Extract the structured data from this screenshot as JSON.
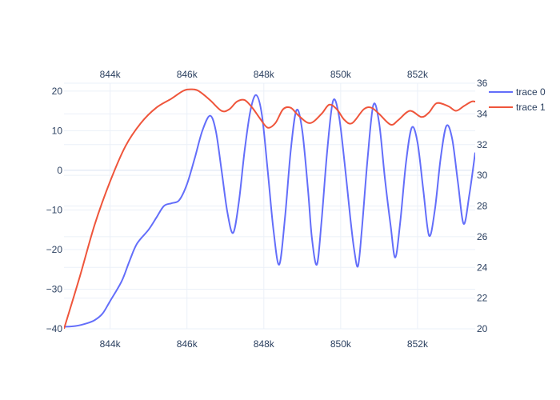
{
  "chart_data": {
    "type": "line",
    "x_axis": {
      "ticks": [
        844000,
        846000,
        848000,
        850000,
        852000
      ],
      "tick_labels": [
        "844k",
        "846k",
        "848k",
        "850k",
        "852k"
      ],
      "range": [
        842800,
        853500
      ]
    },
    "y_left": {
      "ticks": [
        -40,
        -30,
        -20,
        -10,
        0,
        10,
        20
      ],
      "tick_labels": [
        "−40",
        "−30",
        "−20",
        "−10",
        "0",
        "10",
        "20"
      ],
      "range": [
        -40,
        22
      ]
    },
    "y_right": {
      "ticks": [
        20,
        22,
        24,
        26,
        28,
        30,
        32,
        34,
        36
      ],
      "tick_labels": [
        "20",
        "22",
        "24",
        "26",
        "28",
        "30",
        "32",
        "34",
        "36"
      ],
      "range": [
        20,
        36
      ]
    },
    "grid": true,
    "legend_position": "top-right",
    "series": [
      {
        "name": "trace 0",
        "axis": "left",
        "color": "#636efa",
        "points": [
          [
            842800,
            -39.5
          ],
          [
            843100,
            -39.3
          ],
          [
            843400,
            -38.6
          ],
          [
            843600,
            -37.8
          ],
          [
            843800,
            -36.2
          ],
          [
            844000,
            -33.0
          ],
          [
            844300,
            -28.0
          ],
          [
            844500,
            -23.0
          ],
          [
            844700,
            -18.5
          ],
          [
            845000,
            -15.0
          ],
          [
            845200,
            -12.0
          ],
          [
            845400,
            -9.0
          ],
          [
            845600,
            -8.3
          ],
          [
            845800,
            -7.5
          ],
          [
            846000,
            -3.5
          ],
          [
            846200,
            3.0
          ],
          [
            846400,
            10.0
          ],
          [
            846600,
            13.8
          ],
          [
            846750,
            10.0
          ],
          [
            846900,
            0.0
          ],
          [
            847050,
            -10.5
          ],
          [
            847200,
            -15.8
          ],
          [
            847350,
            -8.0
          ],
          [
            847500,
            5.0
          ],
          [
            847650,
            15.0
          ],
          [
            847800,
            19.0
          ],
          [
            847950,
            14.0
          ],
          [
            848100,
            0.0
          ],
          [
            848250,
            -15.0
          ],
          [
            848400,
            -23.8
          ],
          [
            848550,
            -12.0
          ],
          [
            848700,
            5.0
          ],
          [
            848850,
            15.2
          ],
          [
            849000,
            10.0
          ],
          [
            849150,
            -5.0
          ],
          [
            849250,
            -17.0
          ],
          [
            849380,
            -23.8
          ],
          [
            849500,
            -13.0
          ],
          [
            849650,
            5.0
          ],
          [
            849800,
            17.5
          ],
          [
            849950,
            14.0
          ],
          [
            850100,
            2.0
          ],
          [
            850250,
            -12.0
          ],
          [
            850350,
            -20.0
          ],
          [
            850450,
            -24.2
          ],
          [
            850550,
            -15.0
          ],
          [
            850700,
            3.0
          ],
          [
            850850,
            16.5
          ],
          [
            851000,
            12.0
          ],
          [
            851150,
            -2.0
          ],
          [
            851300,
            -14.0
          ],
          [
            851420,
            -22.0
          ],
          [
            851550,
            -13.0
          ],
          [
            851700,
            2.0
          ],
          [
            851850,
            10.8
          ],
          [
            852000,
            7.0
          ],
          [
            852150,
            -5.0
          ],
          [
            852300,
            -16.5
          ],
          [
            852450,
            -10.0
          ],
          [
            852600,
            3.0
          ],
          [
            852750,
            11.2
          ],
          [
            852900,
            8.0
          ],
          [
            853050,
            -3.0
          ],
          [
            853200,
            -13.5
          ],
          [
            853350,
            -6.0
          ],
          [
            853500,
            4.5
          ]
        ]
      },
      {
        "name": "trace 1",
        "axis": "right",
        "color": "#ef553b",
        "points": [
          [
            842800,
            20.0
          ],
          [
            843200,
            23.3
          ],
          [
            843600,
            26.8
          ],
          [
            844000,
            29.6
          ],
          [
            844400,
            31.9
          ],
          [
            844800,
            33.4
          ],
          [
            845200,
            34.4
          ],
          [
            845600,
            35.0
          ],
          [
            845900,
            35.5
          ],
          [
            846100,
            35.6
          ],
          [
            846300,
            35.5
          ],
          [
            846600,
            34.9
          ],
          [
            846900,
            34.2
          ],
          [
            847100,
            34.3
          ],
          [
            847300,
            34.8
          ],
          [
            847500,
            34.9
          ],
          [
            847700,
            34.4
          ],
          [
            847900,
            33.7
          ],
          [
            848100,
            33.1
          ],
          [
            848300,
            33.4
          ],
          [
            848500,
            34.3
          ],
          [
            848700,
            34.4
          ],
          [
            848900,
            33.9
          ],
          [
            849200,
            33.4
          ],
          [
            849500,
            34.0
          ],
          [
            849700,
            34.6
          ],
          [
            849900,
            34.3
          ],
          [
            850100,
            33.6
          ],
          [
            850300,
            33.4
          ],
          [
            850600,
            34.3
          ],
          [
            850800,
            34.4
          ],
          [
            851000,
            34.0
          ],
          [
            851300,
            33.3
          ],
          [
            851500,
            33.6
          ],
          [
            851800,
            34.2
          ],
          [
            852100,
            33.8
          ],
          [
            852300,
            34.1
          ],
          [
            852500,
            34.7
          ],
          [
            852800,
            34.5
          ],
          [
            853000,
            34.2
          ],
          [
            853200,
            34.5
          ],
          [
            853400,
            34.8
          ],
          [
            853500,
            34.8
          ]
        ]
      }
    ]
  }
}
